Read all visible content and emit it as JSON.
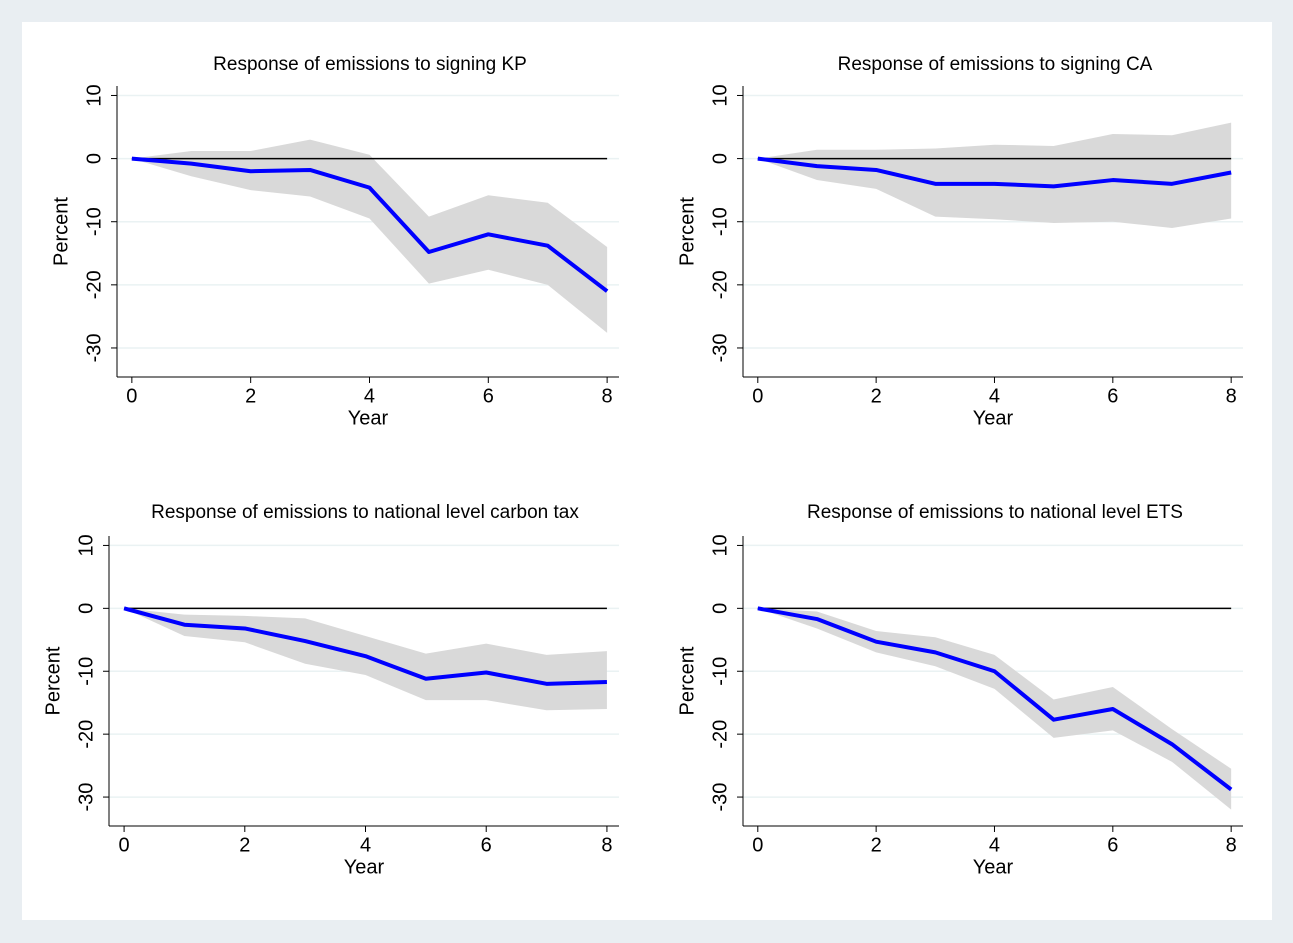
{
  "chart_data": [
    {
      "type": "line",
      "title": "Response of emissions to signing KP",
      "xlabel": "Year",
      "ylabel": "Percent",
      "x": [
        0,
        1,
        2,
        3,
        4,
        5,
        6,
        7,
        8
      ],
      "values": [
        0,
        -0.8,
        -2,
        -1.8,
        -4.6,
        -14.8,
        -12,
        -13.8,
        -21
      ],
      "color": "#0000ff",
      "band_upper": [
        0,
        1.2,
        1.2,
        3,
        0.6,
        -9.2,
        -5.8,
        -7,
        -14
      ],
      "band_lower": [
        0,
        -2.8,
        -5,
        -6,
        -9.5,
        -19.8,
        -17.6,
        -20,
        -27.6
      ],
      "band_color": "#d9d9d9",
      "reference_line": 0,
      "xlim": [
        -0.25,
        8.2
      ],
      "xticks": [
        0,
        2,
        4,
        6,
        8
      ],
      "ylim": [
        -34.6,
        11.5
      ],
      "yticks": [
        10,
        0,
        -10,
        -20,
        -30
      ],
      "grid": true
    },
    {
      "type": "line",
      "title": "Response of emissions to signing CA",
      "xlabel": "Year",
      "ylabel": "Percent",
      "x": [
        0,
        1,
        2,
        3,
        4,
        5,
        6,
        7,
        8
      ],
      "values": [
        0,
        -1.2,
        -1.8,
        -4,
        -4,
        -4.4,
        -3.4,
        -4,
        -2.2
      ],
      "color": "#0000ff",
      "band_upper": [
        0,
        1.4,
        1.4,
        1.6,
        2.2,
        2,
        3.9,
        3.7,
        5.7
      ],
      "band_lower": [
        0,
        -3.4,
        -4.8,
        -9.2,
        -9.6,
        -10.2,
        -10,
        -11,
        -9.5
      ],
      "band_color": "#d9d9d9",
      "reference_line": 0,
      "xlim": [
        -0.25,
        8.2
      ],
      "xticks": [
        0,
        2,
        4,
        6,
        8
      ],
      "ylim": [
        -34.6,
        11.5
      ],
      "yticks": [
        10,
        0,
        -10,
        -20,
        -30
      ],
      "grid": true
    },
    {
      "type": "line",
      "title": "Response of emissions to national level carbon tax",
      "xlabel": "Year",
      "ylabel": "Percent",
      "x": [
        0,
        1,
        2,
        3,
        4,
        5,
        6,
        7,
        8
      ],
      "values": [
        0,
        -2.6,
        -3.2,
        -5.2,
        -7.6,
        -11.2,
        -10.2,
        -12,
        -11.7
      ],
      "color": "#0000ff",
      "band_upper": [
        0,
        -1,
        -1.2,
        -1.6,
        -4.4,
        -7.2,
        -5.6,
        -7.4,
        -6.8
      ],
      "band_lower": [
        0,
        -4.4,
        -5.4,
        -8.8,
        -10.6,
        -14.6,
        -14.6,
        -16.2,
        -16
      ],
      "band_color": "#d9d9d9",
      "reference_line": 0,
      "xlim": [
        -0.25,
        8.2
      ],
      "xticks": [
        0,
        2,
        4,
        6,
        8
      ],
      "ylim": [
        -34.6,
        11.5
      ],
      "yticks": [
        10,
        0,
        -10,
        -20,
        -30
      ],
      "grid": true
    },
    {
      "type": "line",
      "title": "Response of emissions to national level ETS",
      "xlabel": "Year",
      "ylabel": "Percent",
      "x": [
        0,
        1,
        2,
        3,
        4,
        5,
        6,
        7,
        8
      ],
      "values": [
        0,
        -1.7,
        -5.3,
        -7,
        -10,
        -17.7,
        -16,
        -21.6,
        -28.8
      ],
      "color": "#0000ff",
      "band_upper": [
        0,
        -0.5,
        -3.6,
        -4.6,
        -7.4,
        -14.5,
        -12.5,
        -19.2,
        -25.5
      ],
      "band_lower": [
        0,
        -3.2,
        -7,
        -9.2,
        -12.8,
        -20.6,
        -19.4,
        -24.4,
        -32
      ],
      "band_color": "#d9d9d9",
      "reference_line": 0,
      "xlim": [
        -0.25,
        8.2
      ],
      "xticks": [
        0,
        2,
        4,
        6,
        8
      ],
      "ylim": [
        -34.6,
        11.5
      ],
      "yticks": [
        10,
        0,
        -10,
        -20,
        -30
      ],
      "grid": true
    }
  ]
}
